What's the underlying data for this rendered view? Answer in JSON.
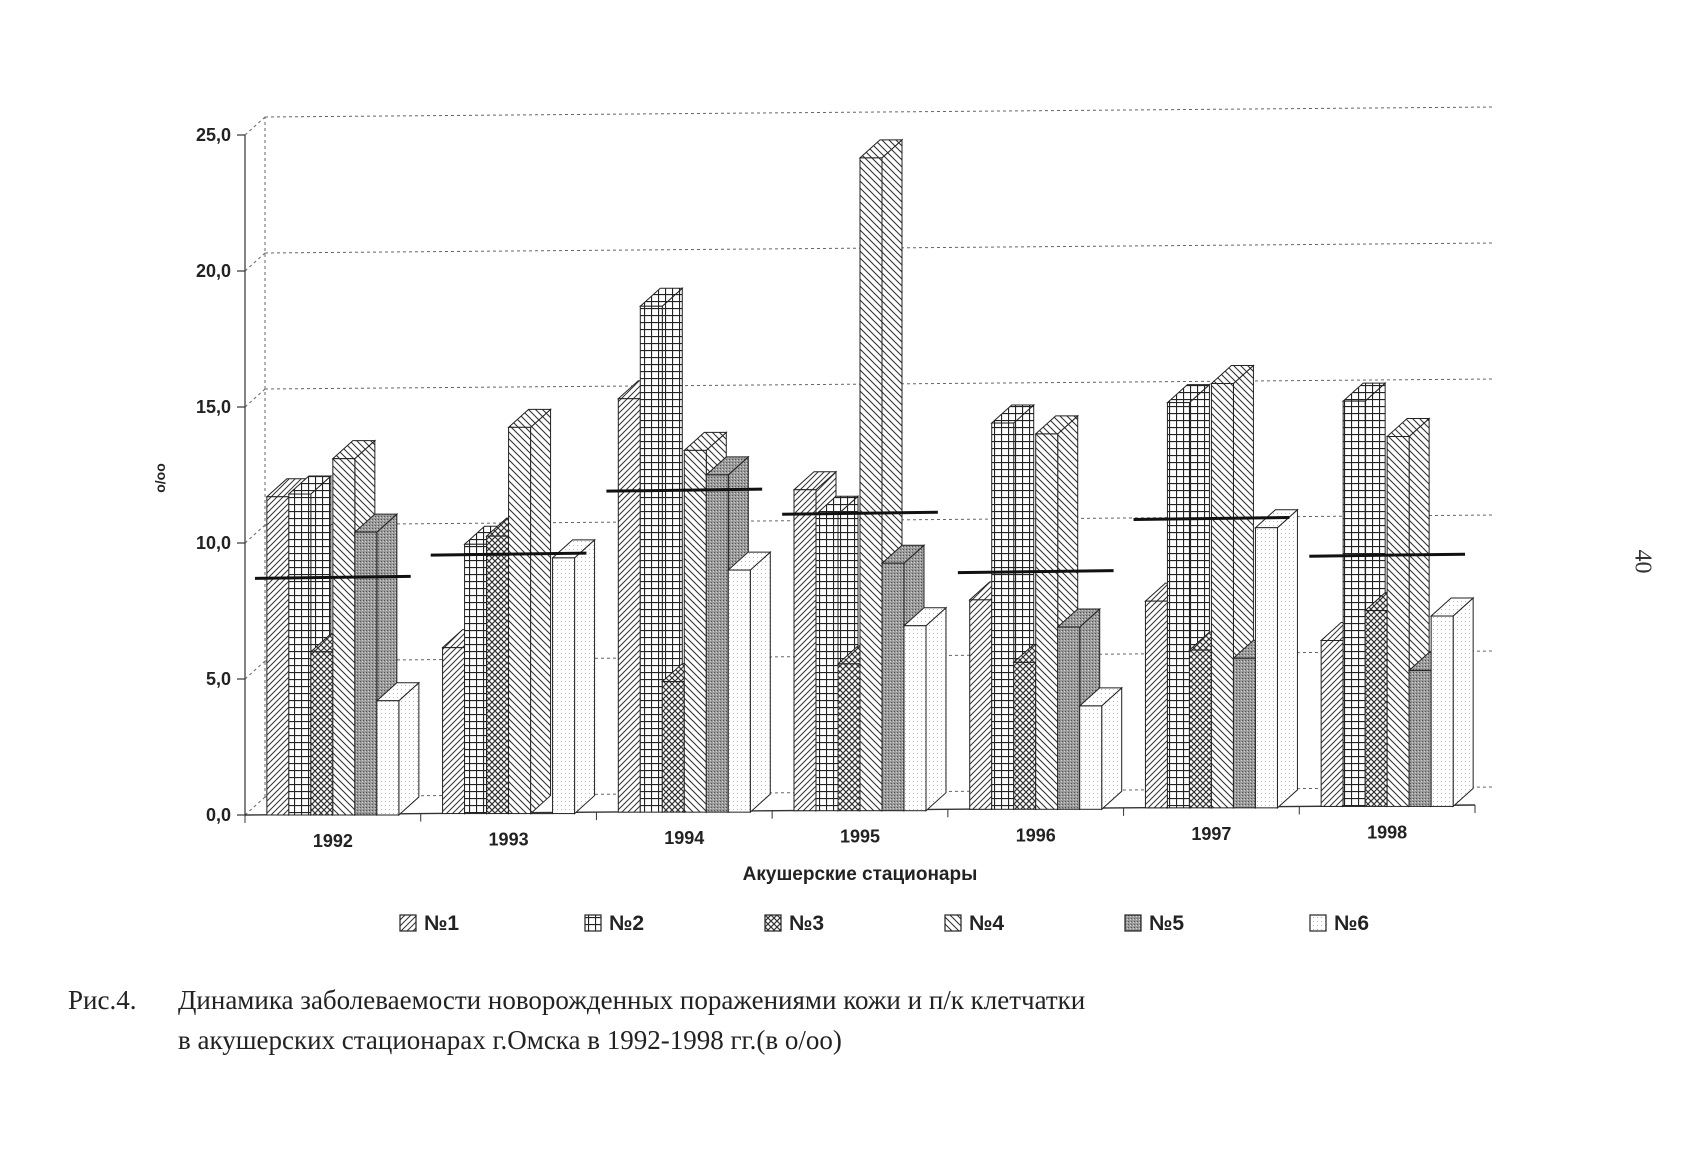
{
  "page_number": "40",
  "caption": {
    "label": "Рис.4.",
    "line1": "Динамика заболеваемости новорожденных поражениями кожи и п/к клетчатки",
    "line2": "в акушерских стационарах г.Омска в 1992-1998 гг.(в о/оо)"
  },
  "chart_data": {
    "type": "bar",
    "xlabel": "Акушерские стационары",
    "ylabel": "o/oo",
    "ylim": [
      0,
      25
    ],
    "yticks": [
      "0,0",
      "5,0",
      "10,0",
      "15,0",
      "20,0",
      "25,0"
    ],
    "grid": true,
    "legend_position": "bottom",
    "categories": [
      "1992",
      "1993",
      "1994",
      "1995",
      "1996",
      "1997",
      "1998"
    ],
    "series": [
      {
        "name": "№1",
        "values": [
          11.7,
          6.1,
          15.2,
          11.8,
          7.7,
          7.6,
          6.1
        ]
      },
      {
        "name": "№2",
        "values": [
          11.8,
          9.9,
          18.6,
          10.9,
          14.2,
          14.9,
          14.9
        ]
      },
      {
        "name": "№3",
        "values": [
          6.0,
          10.2,
          4.8,
          5.4,
          5.4,
          5.8,
          7.2
        ]
      },
      {
        "name": "№4",
        "values": [
          13.1,
          14.2,
          13.3,
          24.0,
          13.8,
          15.6,
          13.6
        ]
      },
      {
        "name": "№5",
        "values": [
          10.4,
          0.0,
          12.4,
          9.1,
          6.7,
          5.5,
          5.0
        ]
      },
      {
        "name": "№6",
        "values": [
          4.2,
          9.4,
          8.9,
          6.8,
          3.8,
          10.3,
          7.0
        ]
      }
    ],
    "averages": [
      8.7,
      9.5,
      11.8,
      10.9,
      8.7,
      10.6,
      9.2
    ]
  }
}
